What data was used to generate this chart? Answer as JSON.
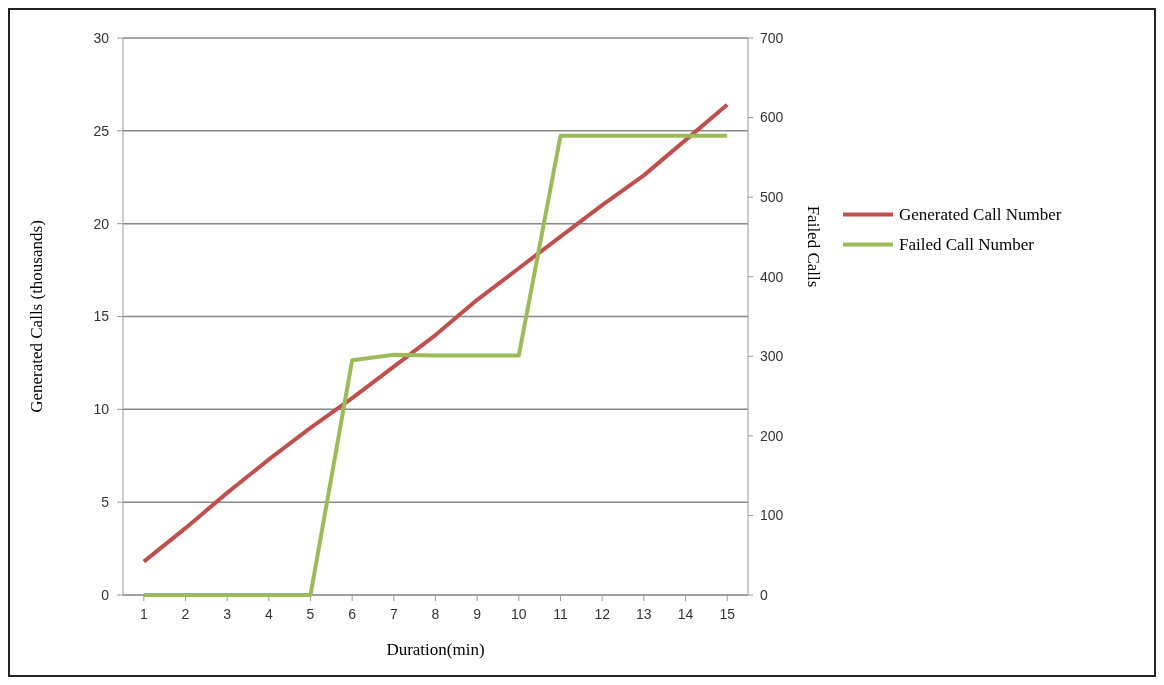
{
  "chart_data": {
    "type": "line",
    "xlabel": "Duration(min)",
    "ylabel": "Generated Calls (thousands)",
    "y2label": "Failed Calls",
    "x": [
      1,
      2,
      3,
      4,
      5,
      6,
      7,
      8,
      9,
      10,
      11,
      12,
      13,
      14,
      15
    ],
    "xlim": [
      0.5,
      15.5
    ],
    "xticks": [
      1,
      2,
      3,
      4,
      5,
      6,
      7,
      8,
      9,
      10,
      11,
      12,
      13,
      14,
      15
    ],
    "ylim": [
      0,
      30
    ],
    "yticks": [
      0,
      5,
      10,
      15,
      20,
      25,
      30
    ],
    "y2lim": [
      0,
      700
    ],
    "y2ticks": [
      0,
      100,
      200,
      300,
      400,
      500,
      600,
      700
    ],
    "grid": "y",
    "legend": "right",
    "marker": "none",
    "line_style": "solid",
    "series": [
      {
        "name": "Generated Call Number",
        "color": "#c0504d",
        "values": [
          1.8,
          3.6,
          5.5,
          7.3,
          9.0,
          10.6,
          12.3,
          14.0,
          15.9,
          17.6,
          19.3,
          21.0,
          22.6,
          24.5,
          26.4
        ]
      },
      {
        "name": "Failed Call Number",
        "color": "#9bbb59",
        "axis": "y2",
        "values": [
          0,
          0,
          0,
          0,
          0,
          295,
          302,
          301,
          301,
          301,
          577,
          577,
          577,
          577,
          577
        ]
      }
    ]
  }
}
